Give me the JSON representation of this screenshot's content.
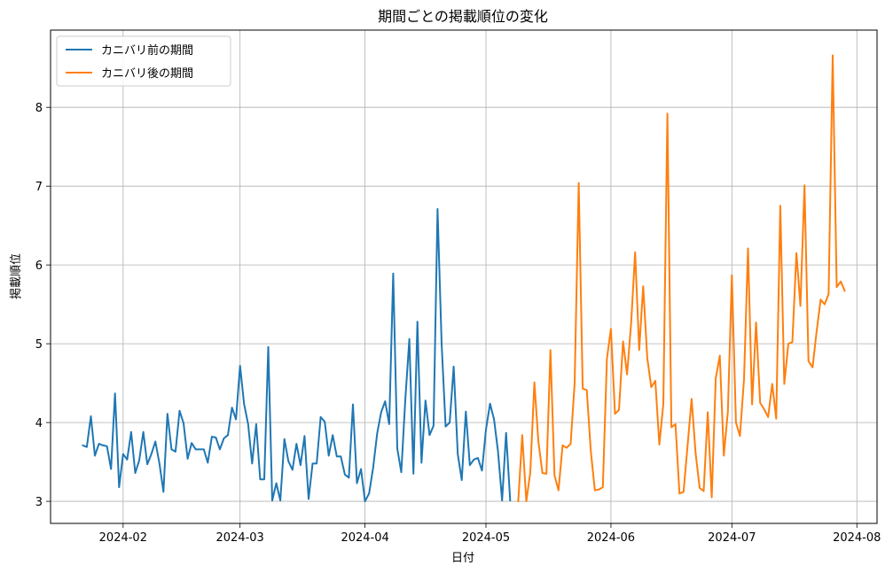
{
  "chart_data": {
    "type": "line",
    "title": "期間ごとの掲載順位の変化",
    "xlabel": "日付",
    "ylabel": "掲載順位",
    "xlim": [
      "2024-01-14",
      "2024-08-06"
    ],
    "ylim": [
      2.72,
      8.98
    ],
    "x_ticks": [
      "2024-02-01",
      "2024-03-01",
      "2024-04-01",
      "2024-05-01",
      "2024-06-01",
      "2024-07-01",
      "2024-08-01"
    ],
    "x_tick_labels": [
      "2024-02",
      "2024-03",
      "2024-04",
      "2024-05",
      "2024-06",
      "2024-07",
      "2024-08"
    ],
    "y_ticks": [
      3,
      4,
      5,
      6,
      7,
      8
    ],
    "grid": true,
    "legend_position": "top-left",
    "series": [
      {
        "name": "カニバリ前の期間",
        "color": "#1f77b4",
        "points": [
          [
            "2024-01-22",
            3.71
          ],
          [
            "2024-01-23",
            3.69
          ],
          [
            "2024-01-24",
            4.08
          ],
          [
            "2024-01-25",
            3.58
          ],
          [
            "2024-01-26",
            3.73
          ],
          [
            "2024-01-27",
            3.71
          ],
          [
            "2024-01-28",
            3.7
          ],
          [
            "2024-01-29",
            3.41
          ],
          [
            "2024-01-30",
            4.37
          ],
          [
            "2024-01-31",
            3.18
          ],
          [
            "2024-02-01",
            3.6
          ],
          [
            "2024-02-02",
            3.53
          ],
          [
            "2024-02-03",
            3.88
          ],
          [
            "2024-02-04",
            3.36
          ],
          [
            "2024-02-05",
            3.52
          ],
          [
            "2024-02-06",
            3.88
          ],
          [
            "2024-02-07",
            3.47
          ],
          [
            "2024-02-08",
            3.6
          ],
          [
            "2024-02-09",
            3.76
          ],
          [
            "2024-02-10",
            3.48
          ],
          [
            "2024-02-11",
            3.12
          ],
          [
            "2024-02-12",
            4.11
          ],
          [
            "2024-02-13",
            3.66
          ],
          [
            "2024-02-14",
            3.63
          ],
          [
            "2024-02-15",
            4.15
          ],
          [
            "2024-02-16",
            3.99
          ],
          [
            "2024-02-17",
            3.54
          ],
          [
            "2024-02-18",
            3.74
          ],
          [
            "2024-02-19",
            3.66
          ],
          [
            "2024-02-20",
            3.66
          ],
          [
            "2024-02-21",
            3.66
          ],
          [
            "2024-02-22",
            3.49
          ],
          [
            "2024-02-23",
            3.82
          ],
          [
            "2024-02-24",
            3.81
          ],
          [
            "2024-02-25",
            3.66
          ],
          [
            "2024-02-26",
            3.8
          ],
          [
            "2024-02-27",
            3.84
          ],
          [
            "2024-02-28",
            4.19
          ],
          [
            "2024-02-29",
            4.04
          ],
          [
            "2024-03-01",
            4.72
          ],
          [
            "2024-03-02",
            4.24
          ],
          [
            "2024-03-03",
            3.98
          ],
          [
            "2024-03-04",
            3.48
          ],
          [
            "2024-03-05",
            3.98
          ],
          [
            "2024-03-06",
            3.28
          ],
          [
            "2024-03-07",
            3.28
          ],
          [
            "2024-03-08",
            4.96
          ],
          [
            "2024-03-09",
            3.01
          ],
          [
            "2024-03-10",
            3.23
          ],
          [
            "2024-03-11",
            3.01
          ],
          [
            "2024-03-12",
            3.79
          ],
          [
            "2024-03-13",
            3.51
          ],
          [
            "2024-03-14",
            3.4
          ],
          [
            "2024-03-15",
            3.73
          ],
          [
            "2024-03-16",
            3.46
          ],
          [
            "2024-03-17",
            3.83
          ],
          [
            "2024-03-18",
            3.03
          ],
          [
            "2024-03-19",
            3.48
          ],
          [
            "2024-03-20",
            3.48
          ],
          [
            "2024-03-21",
            4.07
          ],
          [
            "2024-03-22",
            4.01
          ],
          [
            "2024-03-23",
            3.58
          ],
          [
            "2024-03-24",
            3.84
          ],
          [
            "2024-03-25",
            3.57
          ],
          [
            "2024-03-26",
            3.57
          ],
          [
            "2024-03-27",
            3.34
          ],
          [
            "2024-03-28",
            3.3
          ],
          [
            "2024-03-29",
            4.23
          ],
          [
            "2024-03-30",
            3.23
          ],
          [
            "2024-03-31",
            3.41
          ],
          [
            "2024-04-01",
            3.0
          ],
          [
            "2024-04-02",
            3.1
          ],
          [
            "2024-04-03",
            3.42
          ],
          [
            "2024-04-04",
            3.86
          ],
          [
            "2024-04-05",
            4.13
          ],
          [
            "2024-04-06",
            4.27
          ],
          [
            "2024-04-07",
            3.98
          ],
          [
            "2024-04-08",
            5.89
          ],
          [
            "2024-04-09",
            3.67
          ],
          [
            "2024-04-10",
            3.37
          ],
          [
            "2024-04-11",
            4.3
          ],
          [
            "2024-04-12",
            5.06
          ],
          [
            "2024-04-13",
            3.35
          ],
          [
            "2024-04-14",
            5.28
          ],
          [
            "2024-04-15",
            3.49
          ],
          [
            "2024-04-16",
            4.28
          ],
          [
            "2024-04-17",
            3.84
          ],
          [
            "2024-04-18",
            3.96
          ],
          [
            "2024-04-19",
            6.71
          ],
          [
            "2024-04-20",
            5.0
          ],
          [
            "2024-04-21",
            3.95
          ],
          [
            "2024-04-22",
            4.0
          ],
          [
            "2024-04-23",
            4.71
          ],
          [
            "2024-04-24",
            3.6
          ],
          [
            "2024-04-25",
            3.27
          ],
          [
            "2024-04-26",
            4.14
          ],
          [
            "2024-04-27",
            3.46
          ],
          [
            "2024-04-28",
            3.53
          ],
          [
            "2024-04-29",
            3.55
          ],
          [
            "2024-04-30",
            3.39
          ],
          [
            "2024-05-01",
            3.91
          ],
          [
            "2024-05-02",
            4.24
          ],
          [
            "2024-05-03",
            4.04
          ],
          [
            "2024-05-04",
            3.63
          ],
          [
            "2024-05-05",
            3.01
          ],
          [
            "2024-05-06",
            3.87
          ],
          [
            "2024-05-07",
            3.01
          ]
        ]
      },
      {
        "name": "カニバリ後の期間",
        "color": "#ff7f0e",
        "points": [
          [
            "2024-05-09",
            3.0
          ],
          [
            "2024-05-10",
            3.84
          ],
          [
            "2024-05-11",
            3.0
          ],
          [
            "2024-05-12",
            3.37
          ],
          [
            "2024-05-13",
            4.51
          ],
          [
            "2024-05-14",
            3.76
          ],
          [
            "2024-05-15",
            3.36
          ],
          [
            "2024-05-16",
            3.35
          ],
          [
            "2024-05-17",
            4.92
          ],
          [
            "2024-05-18",
            3.33
          ],
          [
            "2024-05-19",
            3.14
          ],
          [
            "2024-05-20",
            3.71
          ],
          [
            "2024-05-21",
            3.68
          ],
          [
            "2024-05-22",
            3.73
          ],
          [
            "2024-05-23",
            4.5
          ],
          [
            "2024-05-24",
            7.04
          ],
          [
            "2024-05-25",
            4.43
          ],
          [
            "2024-05-26",
            4.41
          ],
          [
            "2024-05-27",
            3.64
          ],
          [
            "2024-05-28",
            3.14
          ],
          [
            "2024-05-29",
            3.15
          ],
          [
            "2024-05-30",
            3.18
          ],
          [
            "2024-05-31",
            4.81
          ],
          [
            "2024-06-01",
            5.19
          ],
          [
            "2024-06-02",
            4.11
          ],
          [
            "2024-06-03",
            4.16
          ],
          [
            "2024-06-04",
            5.03
          ],
          [
            "2024-06-05",
            4.61
          ],
          [
            "2024-06-06",
            5.26
          ],
          [
            "2024-06-07",
            6.16
          ],
          [
            "2024-06-08",
            4.92
          ],
          [
            "2024-06-09",
            5.73
          ],
          [
            "2024-06-10",
            4.82
          ],
          [
            "2024-06-11",
            4.45
          ],
          [
            "2024-06-12",
            4.53
          ],
          [
            "2024-06-13",
            3.72
          ],
          [
            "2024-06-14",
            4.23
          ],
          [
            "2024-06-15",
            7.92
          ],
          [
            "2024-06-16",
            3.94
          ],
          [
            "2024-06-17",
            3.98
          ],
          [
            "2024-06-18",
            3.1
          ],
          [
            "2024-06-19",
            3.12
          ],
          [
            "2024-06-20",
            3.7
          ],
          [
            "2024-06-21",
            4.3
          ],
          [
            "2024-06-22",
            3.61
          ],
          [
            "2024-06-23",
            3.17
          ],
          [
            "2024-06-24",
            3.13
          ],
          [
            "2024-06-25",
            4.13
          ],
          [
            "2024-06-26",
            3.05
          ],
          [
            "2024-06-27",
            4.56
          ],
          [
            "2024-06-28",
            4.85
          ],
          [
            "2024-06-29",
            3.58
          ],
          [
            "2024-06-30",
            4.14
          ],
          [
            "2024-07-01",
            5.87
          ],
          [
            "2024-07-02",
            4.0
          ],
          [
            "2024-07-03",
            3.83
          ],
          [
            "2024-07-04",
            4.55
          ],
          [
            "2024-07-05",
            6.21
          ],
          [
            "2024-07-06",
            4.23
          ],
          [
            "2024-07-07",
            5.27
          ],
          [
            "2024-07-08",
            4.25
          ],
          [
            "2024-07-09",
            4.17
          ],
          [
            "2024-07-10",
            4.07
          ],
          [
            "2024-07-11",
            4.49
          ],
          [
            "2024-07-12",
            4.05
          ],
          [
            "2024-07-13",
            6.75
          ],
          [
            "2024-07-14",
            4.49
          ],
          [
            "2024-07-15",
            5.0
          ],
          [
            "2024-07-16",
            5.02
          ],
          [
            "2024-07-17",
            6.15
          ],
          [
            "2024-07-18",
            5.48
          ],
          [
            "2024-07-19",
            7.01
          ],
          [
            "2024-07-20",
            4.78
          ],
          [
            "2024-07-21",
            4.7
          ],
          [
            "2024-07-22",
            5.15
          ],
          [
            "2024-07-23",
            5.56
          ],
          [
            "2024-07-24",
            5.5
          ],
          [
            "2024-07-25",
            5.63
          ],
          [
            "2024-07-26",
            8.66
          ],
          [
            "2024-07-27",
            5.72
          ],
          [
            "2024-07-28",
            5.79
          ],
          [
            "2024-07-29",
            5.67
          ]
        ]
      }
    ]
  }
}
